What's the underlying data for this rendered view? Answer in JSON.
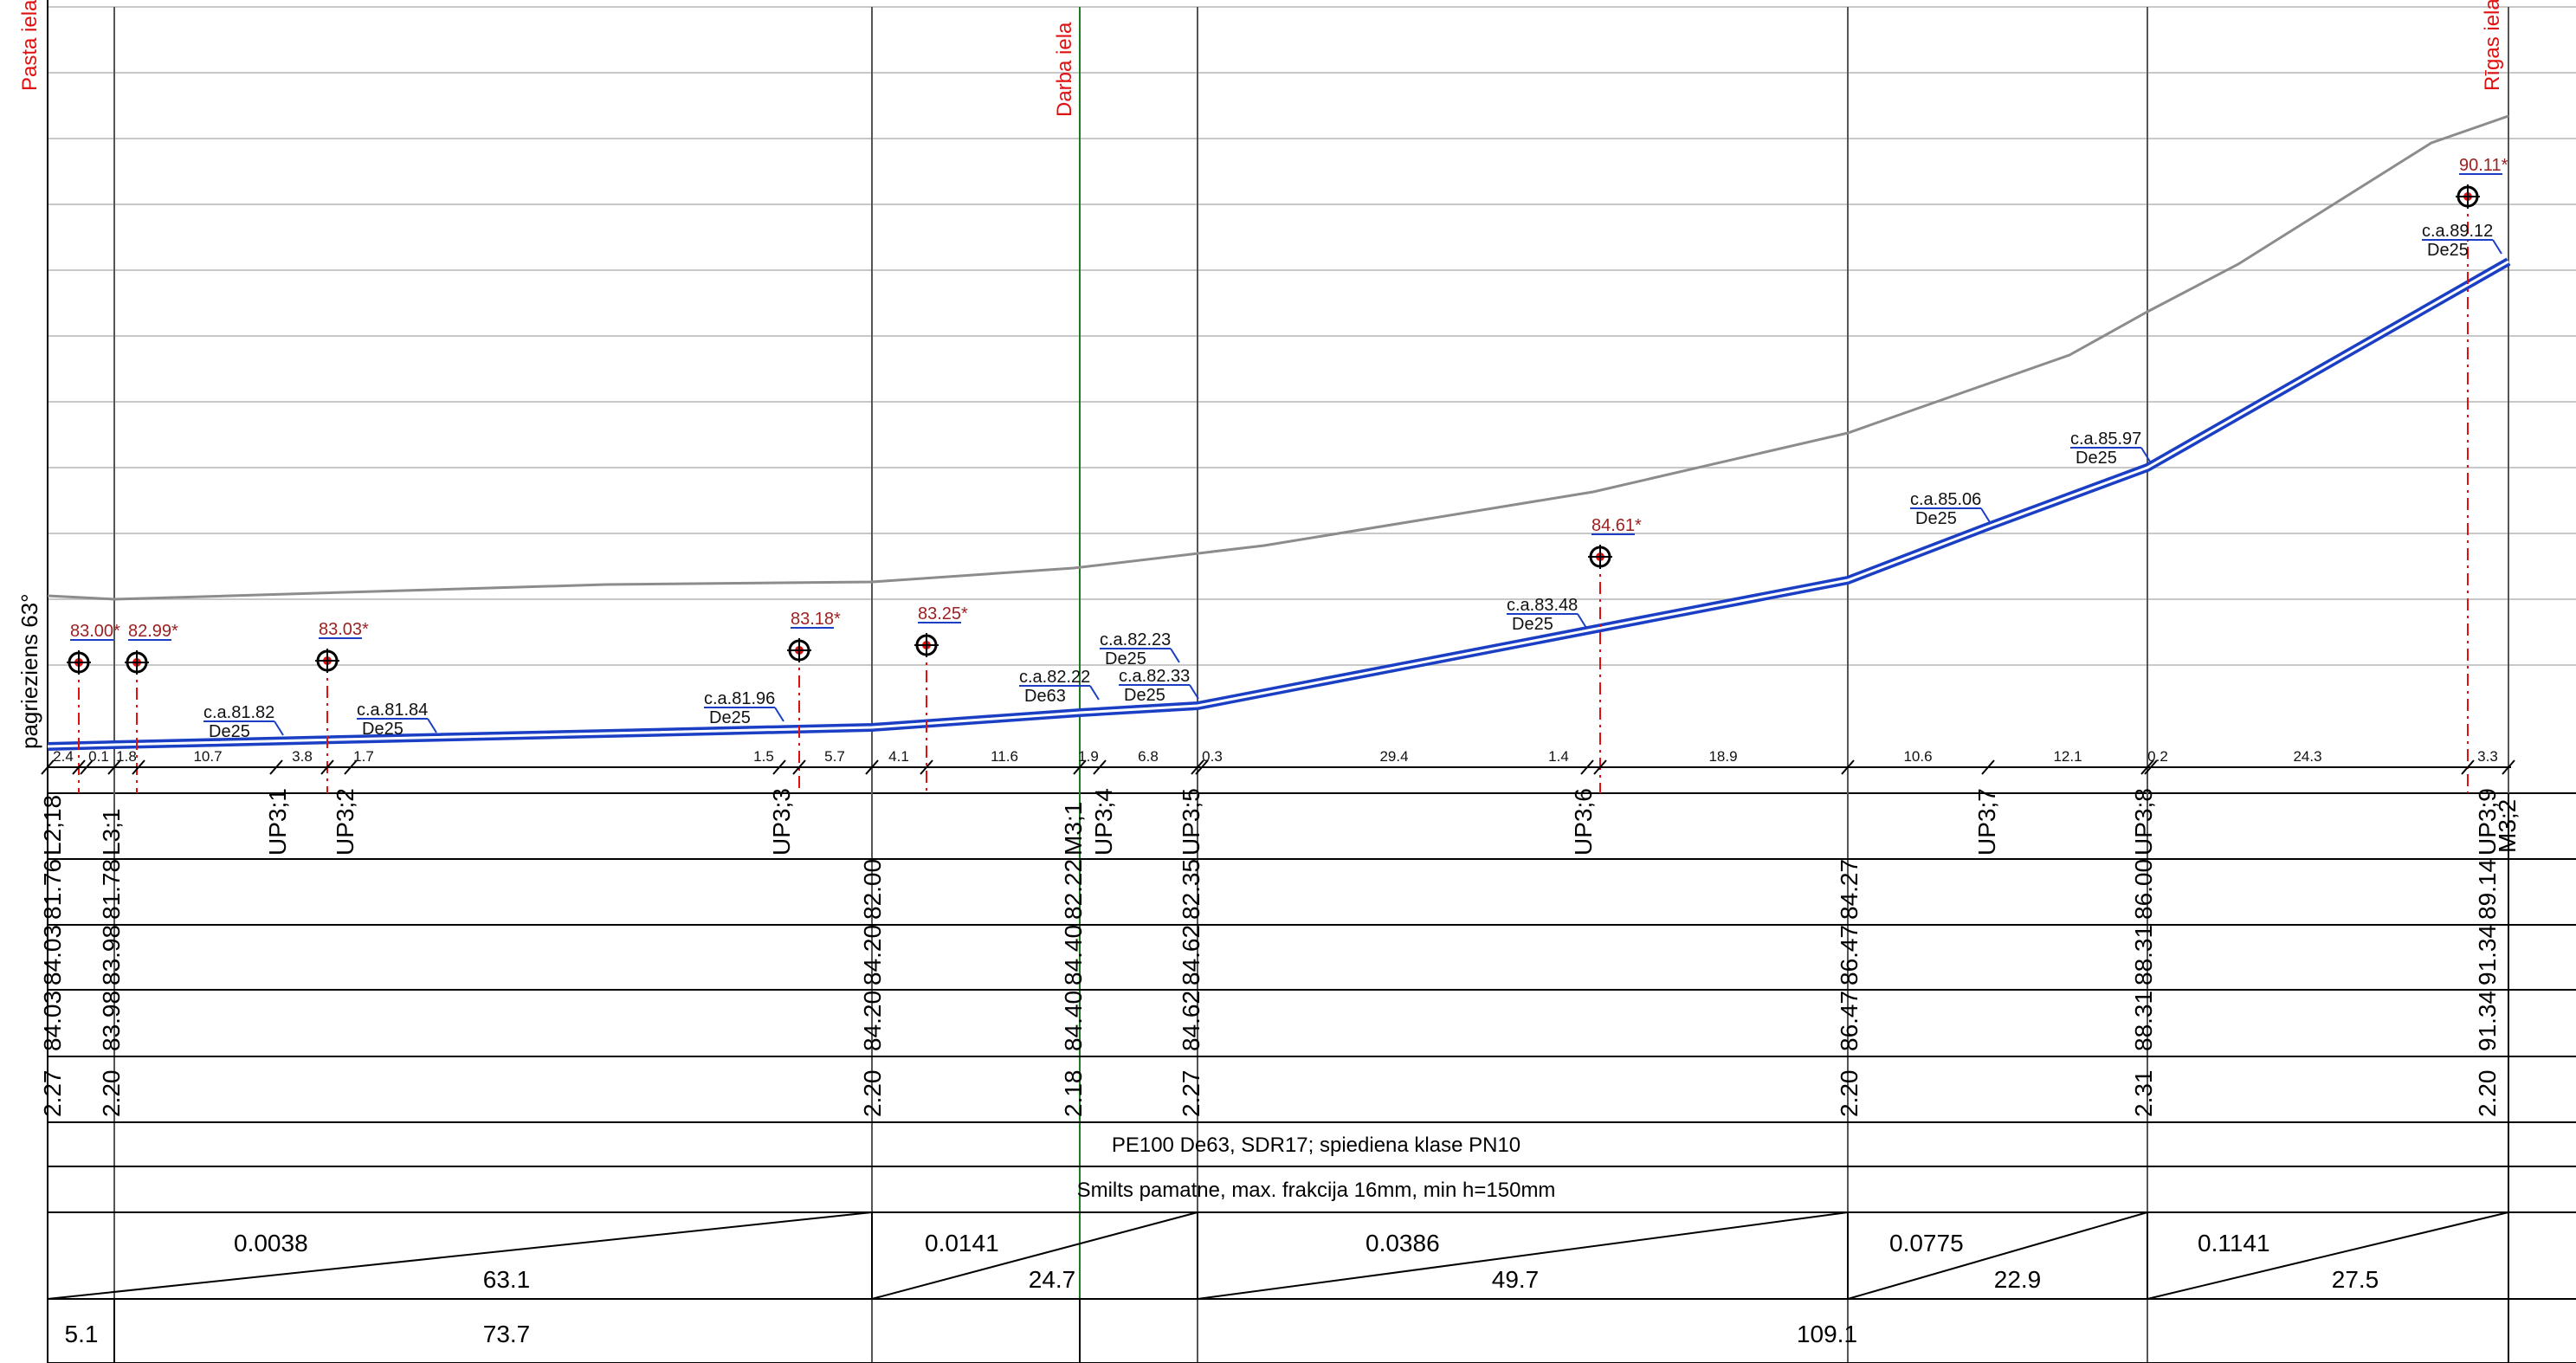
{
  "side_label": "pagrieziens 63°",
  "streets": [
    "Pasta iela",
    "Darba iela",
    "Rīgas iela"
  ],
  "nodes": [
    {
      "label": "L2;18",
      "terrain": "84.03",
      "design": "84.03",
      "pipe": "81.76",
      "depth": "2.27"
    },
    {
      "label": "L3;1",
      "terrain": "83.98",
      "design": "83.98",
      "pipe": "81.78",
      "depth": "2.20"
    },
    {
      "label": "UP3;1"
    },
    {
      "label": "UP3;2"
    },
    {
      "label": "UP3;3"
    },
    {
      "terrain": "84.20",
      "design": "84.20",
      "pipe": "82.00",
      "depth": "2.20"
    },
    {
      "label": "M3;1",
      "terrain": "84.40",
      "design": "84.40",
      "pipe": "82.22",
      "depth": "2.18"
    },
    {
      "label": "UP3;4"
    },
    {
      "label": "UP3;5",
      "terrain": "84.62",
      "design": "84.62",
      "pipe": "82.35",
      "depth": "2.27"
    },
    {
      "label": "UP3;6"
    },
    {
      "terrain": "86.47",
      "design": "86.47",
      "pipe": "84.27",
      "depth": "2.20"
    },
    {
      "label": "UP3;7"
    },
    {
      "label": "UP3;8",
      "terrain": "88.31",
      "design": "88.31",
      "pipe": "86.00",
      "depth": "2.31"
    },
    {
      "label": "UP3;9",
      "terrain": "91.34",
      "design": "91.34",
      "pipe": "89.14",
      "depth": "2.20"
    },
    {
      "label": "M3;2"
    }
  ],
  "spacings": [
    "2.4",
    "0.1",
    "1.8",
    "10.7",
    "3.8",
    "1.7",
    "1.5",
    "5.7",
    "4.1",
    "11.6",
    "1.9",
    "6.8",
    "0.3",
    "29.4",
    "1.4",
    "18.9",
    "10.6",
    "12.1",
    "0.2",
    "24.3",
    "3.3"
  ],
  "pipe_callouts": [
    {
      "level": "c.a.81.82",
      "dia": "De25"
    },
    {
      "level": "c.a.81.84",
      "dia": "De25"
    },
    {
      "level": "c.a.81.96",
      "dia": "De25"
    },
    {
      "level": "c.a.82.22",
      "dia": "De63"
    },
    {
      "level": "c.a.82.23",
      "dia": "De25"
    },
    {
      "level": "c.a.82.33",
      "dia": "De25"
    },
    {
      "level": "c.a.83.48",
      "dia": "De25"
    },
    {
      "level": "c.a.85.06",
      "dia": "De25"
    },
    {
      "level": "c.a.85.97",
      "dia": "De25"
    },
    {
      "level": "c.a.89.12",
      "dia": "De25"
    }
  ],
  "hydrants": [
    "83.00*",
    "82.99*",
    "83.03*",
    "83.18*",
    "83.25*",
    "84.61*",
    "90.11*"
  ],
  "rows": {
    "pipe_material": "PE100 De63, SDR17; spiediena klase PN10",
    "bedding": "Smilts pamatne, max. frakcija 16mm, min h=150mm"
  },
  "slopes": [
    {
      "slope": "0.0038",
      "length": "63.1"
    },
    {
      "slope": "0.0141",
      "length": "24.7"
    },
    {
      "slope": "0.0386",
      "length": "49.7"
    },
    {
      "slope": "0.0775",
      "length": "22.9"
    },
    {
      "slope": "0.1141",
      "length": "27.5"
    }
  ],
  "distances": [
    "5.1",
    "73.7",
    "109.1"
  ],
  "colors": {
    "pipe": "#1a3fc4",
    "terrain": "#8c8c8c",
    "marker": "#e01010",
    "hydrant_text": "#9a1f1f",
    "street_line": "#1e7a1e",
    "grid": "#c8c8c8"
  }
}
